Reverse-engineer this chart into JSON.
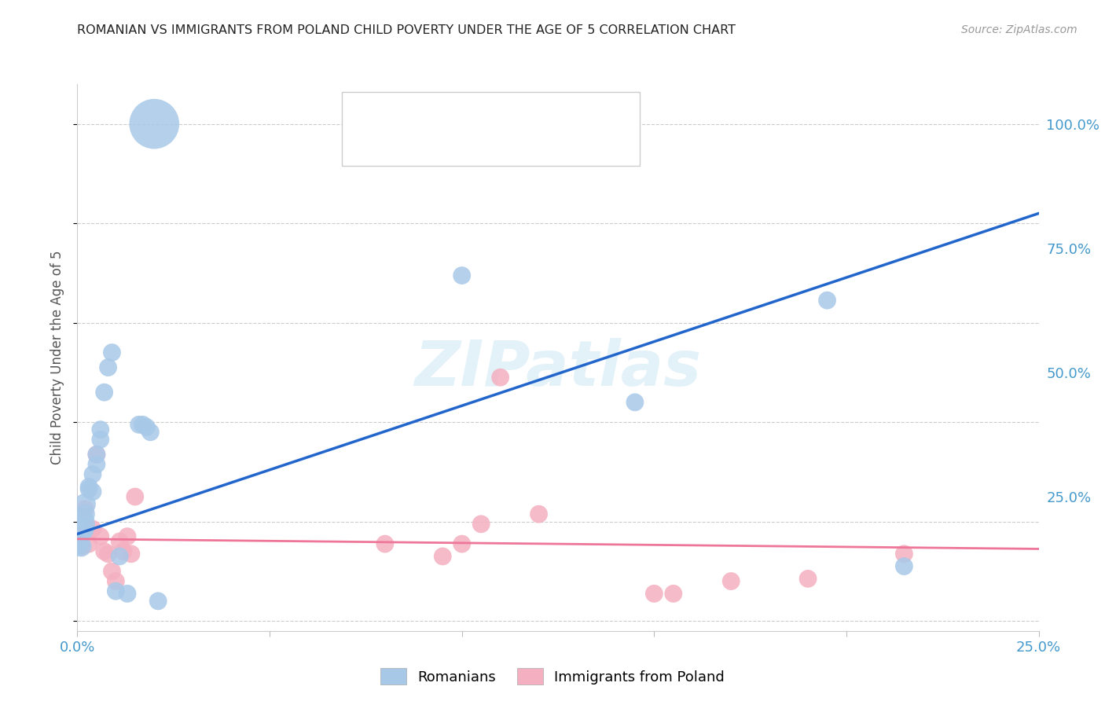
{
  "title": "ROMANIAN VS IMMIGRANTS FROM POLAND CHILD POVERTY UNDER THE AGE OF 5 CORRELATION CHART",
  "source": "Source: ZipAtlas.com",
  "ylabel": "Child Poverty Under the Age of 5",
  "yticks": [
    0.0,
    0.25,
    0.5,
    0.75,
    1.0
  ],
  "ytick_labels": [
    "",
    "25.0%",
    "50.0%",
    "75.0%",
    "100.0%"
  ],
  "blue_color": "#a8c8e8",
  "pink_color": "#f4b0c0",
  "blue_line_color": "#2266cc",
  "pink_line_color": "#ee7799",
  "background_color": "#ffffff",
  "watermark": "ZIPatlas",
  "romanians_x": [
    0.0,
    0.0,
    0.001,
    0.001,
    0.002,
    0.002,
    0.003,
    0.003,
    0.004,
    0.004,
    0.005,
    0.005,
    0.006,
    0.006,
    0.007,
    0.008,
    0.009,
    0.01,
    0.011,
    0.013,
    0.016,
    0.017,
    0.018,
    0.019,
    0.02,
    0.021,
    0.1,
    0.145,
    0.195,
    0.215
  ],
  "romanians_y": [
    0.195,
    0.155,
    0.185,
    0.15,
    0.235,
    0.215,
    0.27,
    0.265,
    0.295,
    0.26,
    0.335,
    0.315,
    0.365,
    0.385,
    0.46,
    0.51,
    0.54,
    0.06,
    0.13,
    0.055,
    0.395,
    0.395,
    0.39,
    0.38,
    1.0,
    0.04,
    0.695,
    0.44,
    0.645,
    0.11
  ],
  "romanians_size": [
    350,
    150,
    180,
    120,
    130,
    110,
    90,
    90,
    90,
    90,
    90,
    90,
    90,
    90,
    90,
    90,
    90,
    90,
    90,
    90,
    90,
    90,
    90,
    90,
    700,
    90,
    90,
    90,
    90,
    90
  ],
  "poland_x": [
    0.0,
    0.001,
    0.002,
    0.003,
    0.004,
    0.005,
    0.006,
    0.007,
    0.008,
    0.009,
    0.01,
    0.011,
    0.012,
    0.013,
    0.014,
    0.015,
    0.08,
    0.095,
    0.1,
    0.105,
    0.11,
    0.12,
    0.15,
    0.155,
    0.17,
    0.19,
    0.215
  ],
  "poland_y": [
    0.165,
    0.15,
    0.225,
    0.155,
    0.185,
    0.335,
    0.17,
    0.14,
    0.135,
    0.1,
    0.08,
    0.16,
    0.14,
    0.17,
    0.135,
    0.25,
    0.155,
    0.13,
    0.155,
    0.195,
    0.49,
    0.215,
    0.055,
    0.055,
    0.08,
    0.085,
    0.135
  ],
  "poland_size": [
    180,
    90,
    90,
    90,
    90,
    90,
    90,
    90,
    90,
    90,
    90,
    90,
    90,
    90,
    90,
    90,
    90,
    90,
    90,
    90,
    90,
    90,
    90,
    90,
    90,
    90,
    90
  ],
  "xlim": [
    0.0,
    0.25
  ],
  "ylim": [
    -0.02,
    1.08
  ],
  "blue_line_x": [
    0.0,
    0.25
  ],
  "blue_line_y": [
    0.175,
    0.82
  ],
  "pink_line_x": [
    0.0,
    0.25
  ],
  "pink_line_y": [
    0.165,
    0.145
  ]
}
